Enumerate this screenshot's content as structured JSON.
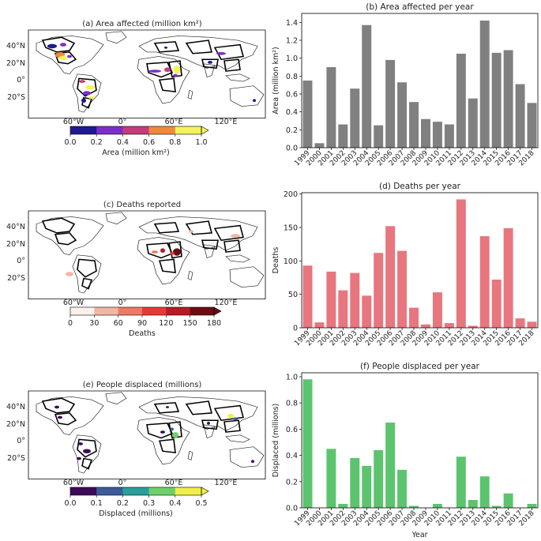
{
  "panel_titles": {
    "a": "(a) Area affected (million km²)",
    "c": "(c) Deaths reported",
    "e": "(e) People displaced (millions)"
  },
  "map_axes": {
    "lat_ticks": [
      "40°N",
      "20°N",
      "0°",
      "20°S"
    ],
    "lon_ticks": [
      "60°W",
      "0°",
      "60°E",
      "120°E"
    ]
  },
  "colorbars": [
    {
      "label": "Area (million km²)",
      "ticks": [
        "0.0",
        "0.2",
        "0.4",
        "0.6",
        "0.8",
        "1.0"
      ],
      "colors": [
        "#1f1a8f",
        "#7b2fc9",
        "#c43c7a",
        "#ef8a3c",
        "#f3f35a"
      ],
      "extend": "max"
    },
    {
      "label": "Deaths",
      "ticks": [
        "0",
        "30",
        "60",
        "90",
        "120",
        "150",
        "180"
      ],
      "colors": [
        "#fdf1ec",
        "#f4b6a0",
        "#ee7a63",
        "#e53b34",
        "#b41d24",
        "#6b0d12"
      ],
      "extend": "max"
    },
    {
      "label": "Displaced (millions)",
      "ticks": [
        "0.0",
        "0.1",
        "0.2",
        "0.3",
        "0.4",
        "0.5"
      ],
      "colors": [
        "#3d0b57",
        "#3b5c99",
        "#2b9d9a",
        "#6fd06a",
        "#f0ef4a"
      ],
      "extend": "max"
    }
  ],
  "chart_data": [
    {
      "type": "bar",
      "title": "(b) Area affected per year",
      "xlabel": "",
      "ylabel": "Area (million km²)",
      "color": "#808080",
      "categories": [
        "1999",
        "2000",
        "2001",
        "2002",
        "2003",
        "2004",
        "2005",
        "2006",
        "2007",
        "2008",
        "2009",
        "2010",
        "2011",
        "2012",
        "2013",
        "2014",
        "2015",
        "2016",
        "2017",
        "2018"
      ],
      "values": [
        0.75,
        0.05,
        0.9,
        0.26,
        0.66,
        1.37,
        0.25,
        0.98,
        0.73,
        0.51,
        0.32,
        0.29,
        0.26,
        1.05,
        0.55,
        1.42,
        1.06,
        1.09,
        0.71,
        0.5
      ],
      "ylim": [
        0,
        1.5
      ],
      "yticks": [
        0.0,
        0.2,
        0.4,
        0.6,
        0.8,
        1.0,
        1.2,
        1.4
      ],
      "ytick_labels": [
        "0.0",
        "0.2",
        "0.4",
        "0.6",
        "0.8",
        "1.0",
        "1.2",
        "1.4"
      ]
    },
    {
      "type": "bar",
      "title": "(d) Deaths per year",
      "xlabel": "",
      "ylabel": "Deaths",
      "color": "#e8767e",
      "categories": [
        "1999",
        "2000",
        "2001",
        "2002",
        "2003",
        "2004",
        "2005",
        "2006",
        "2007",
        "2008",
        "2009",
        "2010",
        "2011",
        "2012",
        "2013",
        "2014",
        "2015",
        "2016",
        "2017",
        "2018"
      ],
      "values": [
        93,
        8,
        84,
        56,
        82,
        48,
        112,
        152,
        115,
        30,
        5,
        53,
        7,
        192,
        3,
        137,
        72,
        149,
        14,
        9
      ],
      "ylim": [
        0,
        202
      ],
      "yticks": [
        0,
        50,
        100,
        150,
        200
      ],
      "ytick_labels": [
        "0",
        "50",
        "100",
        "150",
        "200"
      ]
    },
    {
      "type": "bar",
      "title": "(f) People displaced per year",
      "xlabel": "Year",
      "ylabel": "Displaced (millions)",
      "color": "#5cc46e",
      "categories": [
        "1999",
        "2000",
        "2001",
        "2002",
        "2003",
        "2004",
        "2005",
        "2006",
        "2007",
        "2008",
        "2009",
        "2010",
        "2011",
        "2012",
        "2013",
        "2014",
        "2015",
        "2016",
        "2017",
        "2018"
      ],
      "values": [
        0.98,
        0.0,
        0.45,
        0.03,
        0.38,
        0.32,
        0.44,
        0.65,
        0.29,
        0.015,
        0.0,
        0.03,
        0.0,
        0.39,
        0.06,
        0.24,
        0.015,
        0.11,
        0.0,
        0.03
      ],
      "ylim": [
        0,
        1.03
      ],
      "yticks": [
        0.0,
        0.2,
        0.4,
        0.6,
        0.8,
        1.0
      ],
      "ytick_labels": [
        "0.0",
        "0.2",
        "0.4",
        "0.6",
        "0.8",
        "1.0"
      ]
    }
  ]
}
